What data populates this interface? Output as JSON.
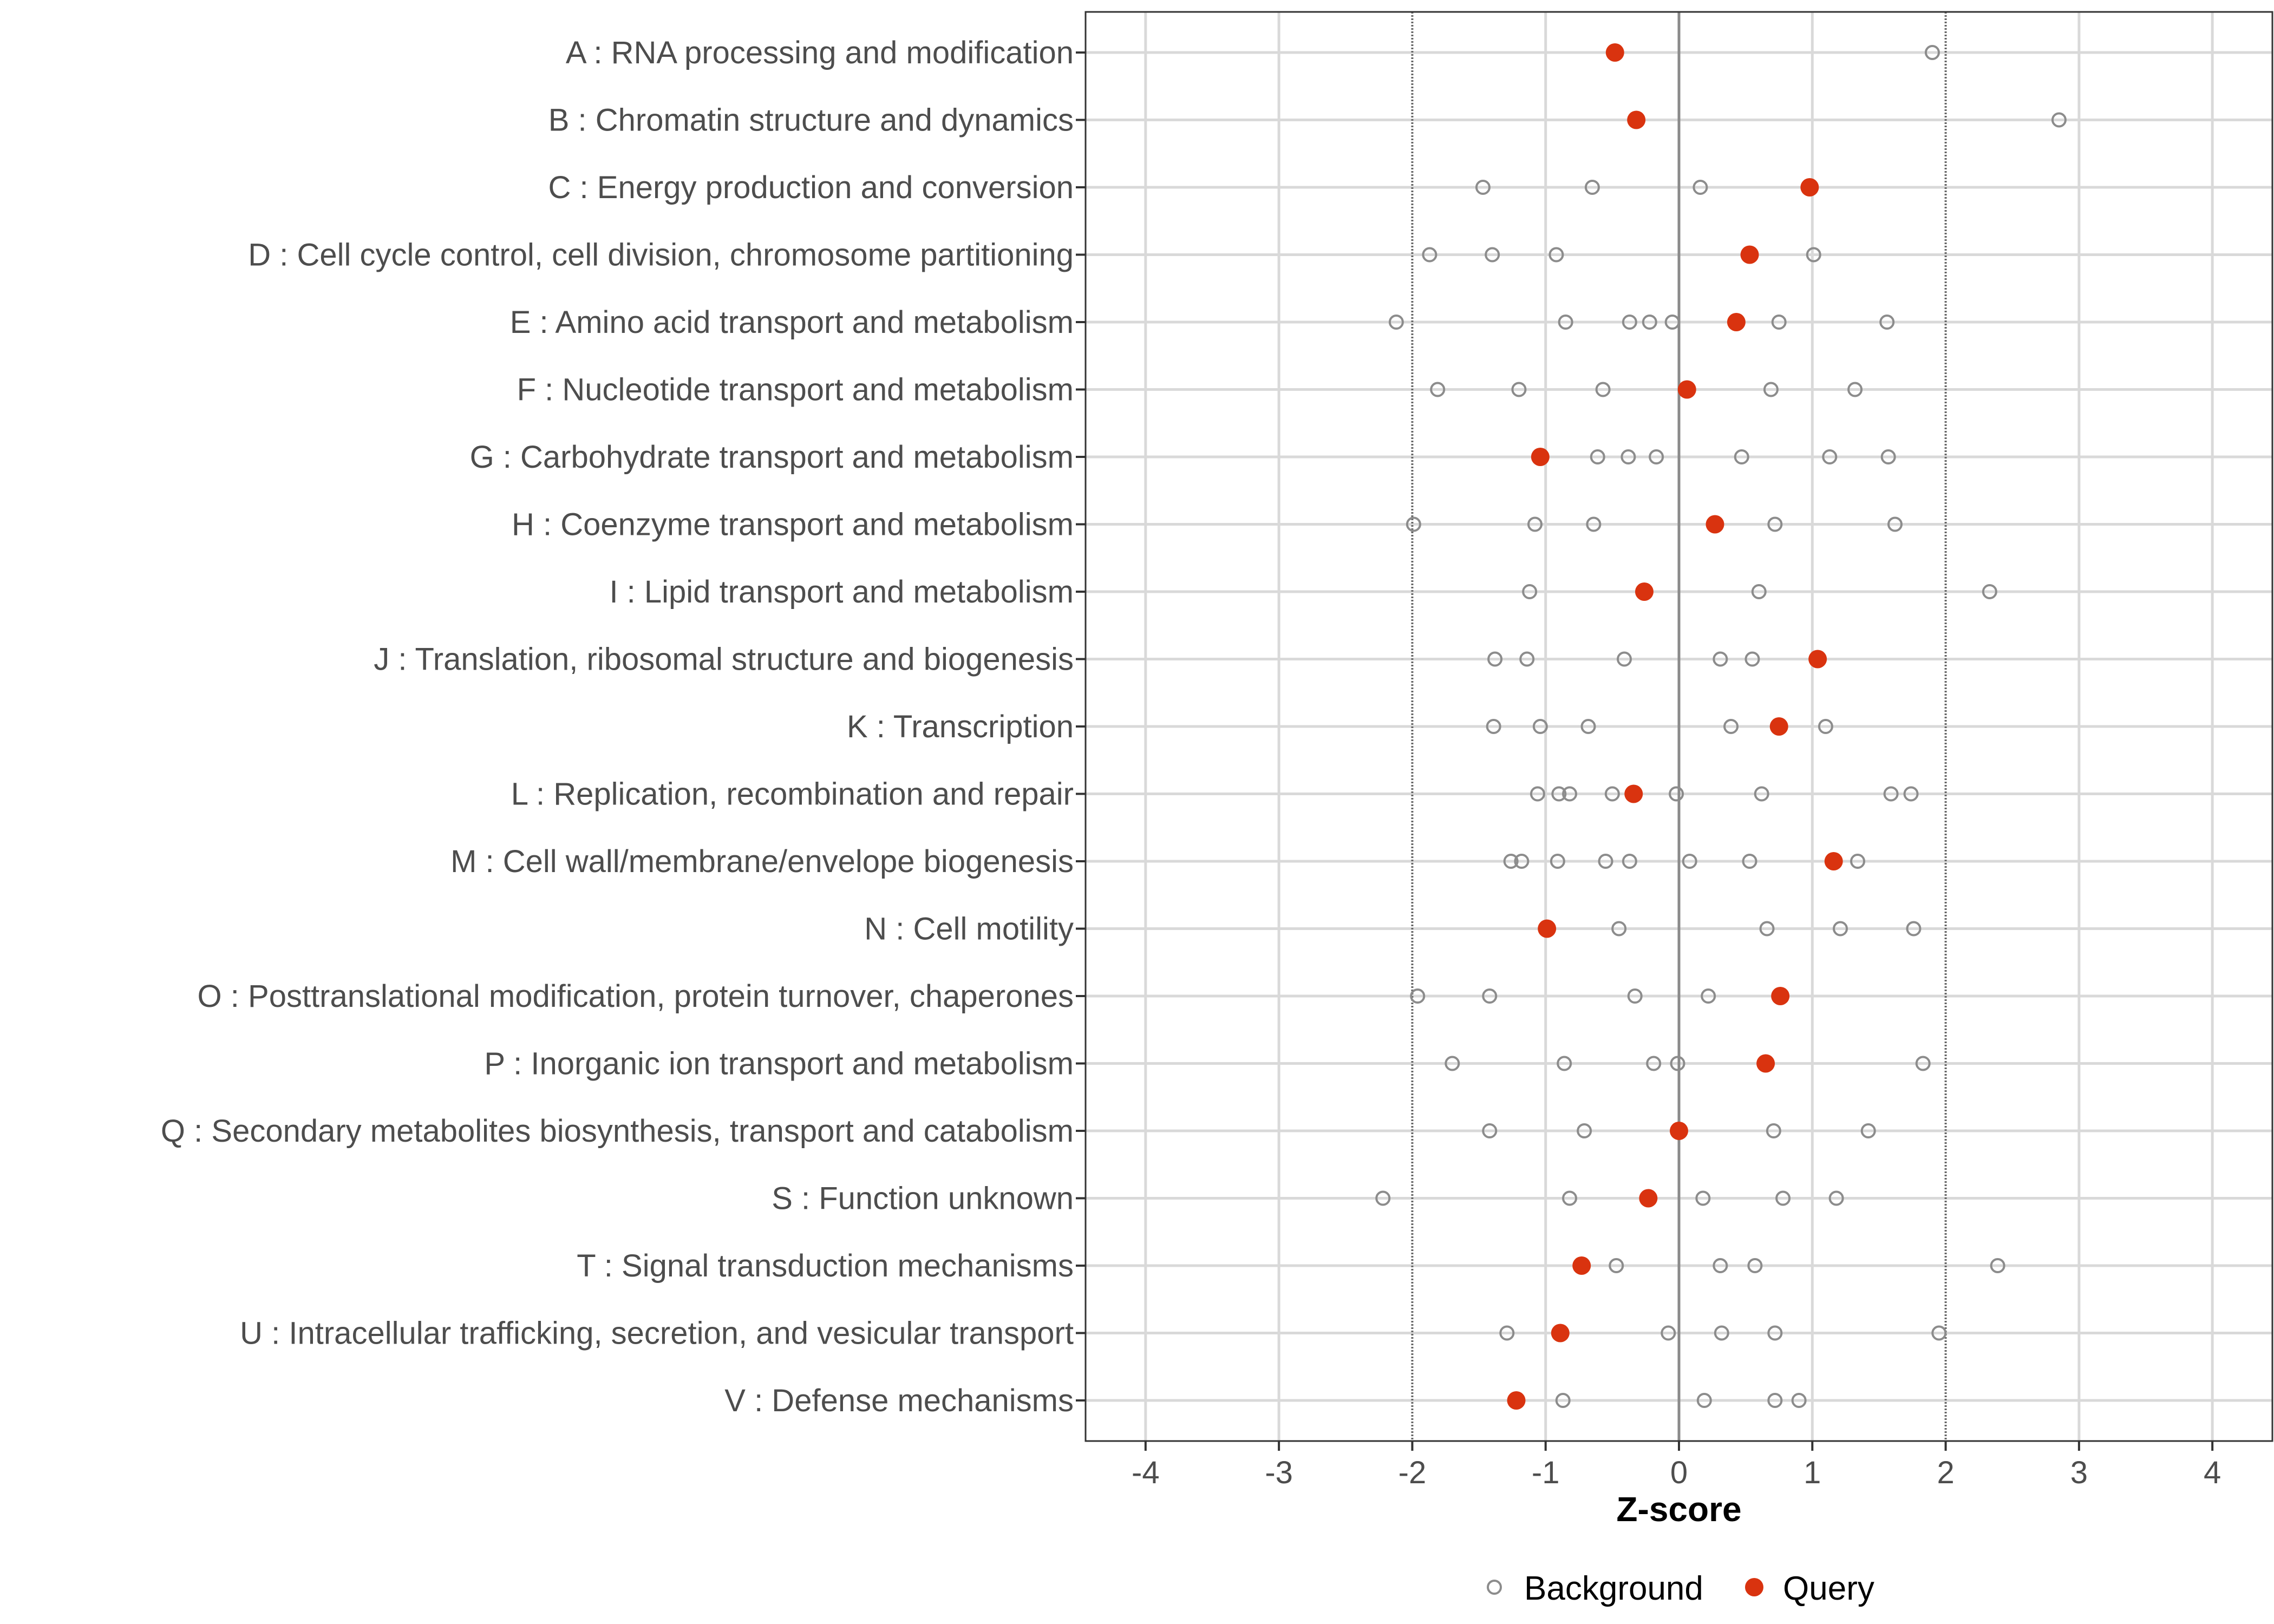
{
  "chart_data": {
    "type": "scatter",
    "xlabel": "Z-score",
    "xlim": [
      -4.45,
      4.45
    ],
    "x_ticks": [
      -4,
      -3,
      -2,
      -1,
      0,
      1,
      2,
      3,
      4
    ],
    "x_tick_labels": [
      "-4",
      "-3",
      "-2",
      "-1",
      "0",
      "1",
      "2",
      "3",
      "4"
    ],
    "reference_lines": [
      -2,
      0,
      2
    ],
    "grid": true,
    "legend_position": "bottom",
    "colors": {
      "query": "#d9330f",
      "background_stroke": "#8c8c8c",
      "grid": "#d9d9d9",
      "panel_border": "#333333",
      "ref_line": "#666666",
      "zero_line": "#8a8a8a"
    },
    "categories": [
      "A : RNA processing and modification",
      "B : Chromatin structure and dynamics",
      "C : Energy production and conversion",
      "D : Cell cycle control, cell division, chromosome partitioning",
      "E : Amino acid transport and metabolism",
      "F : Nucleotide transport and metabolism",
      "G : Carbohydrate transport and metabolism",
      "H : Coenzyme transport and metabolism",
      "I : Lipid transport and metabolism",
      "J : Translation, ribosomal structure and biogenesis",
      "K : Transcription",
      "L : Replication, recombination and repair",
      "M : Cell wall/membrane/envelope biogenesis",
      "N : Cell motility",
      "O : Posttranslational modification, protein turnover, chaperones",
      "P : Inorganic ion transport and metabolism",
      "Q : Secondary metabolites biosynthesis, transport and catabolism",
      "S : Function unknown",
      "T : Signal transduction mechanisms",
      "U : Intracellular trafficking, secretion, and vesicular transport",
      "V : Defense mechanisms"
    ],
    "series": [
      {
        "name": "Background",
        "marker": "open-circle",
        "values": [
          [
            1.9
          ],
          [
            2.85
          ],
          [
            -1.47,
            -0.65,
            0.16
          ],
          [
            -1.87,
            -1.4,
            -0.92,
            1.01
          ],
          [
            -2.12,
            -0.85,
            -0.37,
            -0.22,
            -0.05,
            0.75,
            1.56
          ],
          [
            -1.81,
            -1.2,
            -0.57,
            0.69,
            1.32
          ],
          [
            -0.61,
            -0.38,
            -0.17,
            0.47,
            1.13,
            1.57
          ],
          [
            -1.99,
            -1.08,
            -0.64,
            0.72,
            1.62
          ],
          [
            -1.12,
            0.6,
            2.33
          ],
          [
            -1.38,
            -1.14,
            -0.41,
            0.31,
            0.55
          ],
          [
            -1.39,
            -1.04,
            -0.68,
            0.39,
            1.1
          ],
          [
            -1.06,
            -0.9,
            -0.82,
            -0.5,
            -0.02,
            0.62,
            1.59,
            1.74
          ],
          [
            -1.26,
            -1.18,
            -0.91,
            -0.55,
            -0.37,
            0.08,
            0.53,
            1.34
          ],
          [
            -0.45,
            0.66,
            1.21,
            1.76
          ],
          [
            -1.96,
            -1.42,
            -0.33,
            0.22
          ],
          [
            -1.7,
            -0.86,
            -0.19,
            -0.01,
            1.83
          ],
          [
            -1.42,
            -0.71,
            0.71,
            1.42
          ],
          [
            -2.22,
            -0.82,
            0.18,
            0.78,
            1.18
          ],
          [
            -0.47,
            0.31,
            0.57,
            2.39
          ],
          [
            -1.29,
            -0.08,
            0.32,
            0.72,
            1.95
          ],
          [
            -0.87,
            0.19,
            0.72,
            0.9
          ]
        ]
      },
      {
        "name": "Query",
        "marker": "filled-circle",
        "values": [
          -0.48,
          -0.32,
          0.98,
          0.53,
          0.43,
          0.06,
          -1.04,
          0.27,
          -0.26,
          1.04,
          0.75,
          -0.34,
          1.16,
          -0.99,
          0.76,
          0.65,
          0.0,
          -0.23,
          -0.73,
          -0.89,
          -1.22
        ]
      }
    ]
  },
  "legend": {
    "items": [
      {
        "label": "Background"
      },
      {
        "label": "Query"
      }
    ]
  }
}
